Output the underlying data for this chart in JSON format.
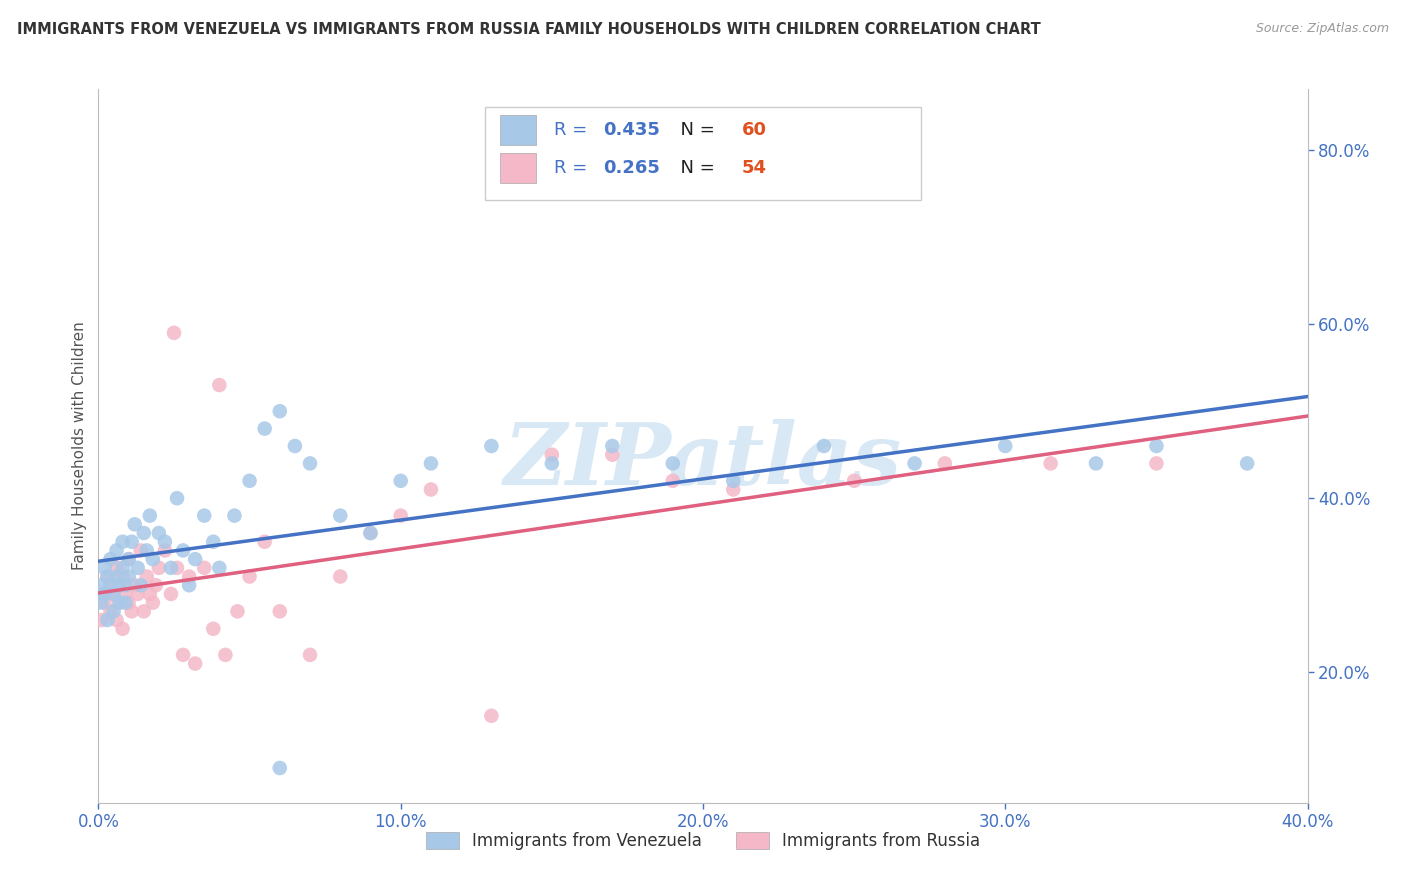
{
  "title": "IMMIGRANTS FROM VENEZUELA VS IMMIGRANTS FROM RUSSIA FAMILY HOUSEHOLDS WITH CHILDREN CORRELATION CHART",
  "source": "Source: ZipAtlas.com",
  "ylabel": "Family Households with Children",
  "xmin": 0.0,
  "xmax": 0.4,
  "ymin": 0.05,
  "ymax": 0.87,
  "xtick_labels": [
    "0.0%",
    "10.0%",
    "20.0%",
    "30.0%",
    "40.0%"
  ],
  "xtick_values": [
    0.0,
    0.1,
    0.2,
    0.3,
    0.4
  ],
  "ytick_labels": [
    "20.0%",
    "40.0%",
    "60.0%",
    "80.0%"
  ],
  "ytick_values": [
    0.2,
    0.4,
    0.6,
    0.8
  ],
  "venezuela_color": "#a8c8e8",
  "russia_color": "#f4b8c8",
  "venezuela_line_color": "#4472c4",
  "russia_line_color": "#e06080",
  "venezuela_R": 0.435,
  "venezuela_N": 60,
  "russia_R": 0.265,
  "russia_N": 54,
  "R_color": "#4472c4",
  "N_color": "#e05020",
  "watermark_text": "ZIPatlas",
  "watermark_color": "#d8e8f4",
  "venezuela_x": [
    0.001,
    0.001,
    0.002,
    0.002,
    0.003,
    0.003,
    0.004,
    0.004,
    0.005,
    0.005,
    0.006,
    0.006,
    0.007,
    0.007,
    0.008,
    0.008,
    0.009,
    0.009,
    0.01,
    0.01,
    0.011,
    0.012,
    0.013,
    0.014,
    0.015,
    0.016,
    0.017,
    0.018,
    0.02,
    0.022,
    0.024,
    0.026,
    0.028,
    0.03,
    0.032,
    0.035,
    0.038,
    0.04,
    0.045,
    0.05,
    0.055,
    0.06,
    0.065,
    0.07,
    0.08,
    0.09,
    0.1,
    0.11,
    0.13,
    0.15,
    0.17,
    0.19,
    0.21,
    0.24,
    0.27,
    0.3,
    0.33,
    0.35,
    0.38,
    0.06
  ],
  "venezuela_y": [
    0.3,
    0.28,
    0.32,
    0.29,
    0.31,
    0.26,
    0.3,
    0.33,
    0.29,
    0.27,
    0.31,
    0.34,
    0.3,
    0.28,
    0.32,
    0.35,
    0.3,
    0.28,
    0.33,
    0.31,
    0.35,
    0.37,
    0.32,
    0.3,
    0.36,
    0.34,
    0.38,
    0.33,
    0.36,
    0.35,
    0.32,
    0.4,
    0.34,
    0.3,
    0.33,
    0.38,
    0.35,
    0.32,
    0.38,
    0.42,
    0.48,
    0.5,
    0.46,
    0.44,
    0.38,
    0.36,
    0.42,
    0.44,
    0.46,
    0.44,
    0.46,
    0.44,
    0.42,
    0.46,
    0.44,
    0.46,
    0.44,
    0.46,
    0.44,
    0.09
  ],
  "russia_x": [
    0.001,
    0.001,
    0.002,
    0.003,
    0.004,
    0.004,
    0.005,
    0.006,
    0.006,
    0.007,
    0.008,
    0.008,
    0.009,
    0.01,
    0.01,
    0.011,
    0.012,
    0.013,
    0.014,
    0.015,
    0.016,
    0.017,
    0.018,
    0.019,
    0.02,
    0.022,
    0.024,
    0.026,
    0.028,
    0.03,
    0.032,
    0.035,
    0.038,
    0.042,
    0.046,
    0.05,
    0.055,
    0.06,
    0.07,
    0.08,
    0.09,
    0.1,
    0.11,
    0.13,
    0.15,
    0.17,
    0.19,
    0.21,
    0.25,
    0.28,
    0.315,
    0.35,
    0.025,
    0.04
  ],
  "russia_y": [
    0.26,
    0.29,
    0.28,
    0.31,
    0.27,
    0.3,
    0.29,
    0.26,
    0.32,
    0.28,
    0.25,
    0.31,
    0.29,
    0.28,
    0.33,
    0.27,
    0.3,
    0.29,
    0.34,
    0.27,
    0.31,
    0.29,
    0.28,
    0.3,
    0.32,
    0.34,
    0.29,
    0.32,
    0.22,
    0.31,
    0.21,
    0.32,
    0.25,
    0.22,
    0.27,
    0.31,
    0.35,
    0.27,
    0.22,
    0.31,
    0.36,
    0.38,
    0.41,
    0.15,
    0.45,
    0.45,
    0.42,
    0.41,
    0.42,
    0.44,
    0.44,
    0.44,
    0.59,
    0.53
  ]
}
